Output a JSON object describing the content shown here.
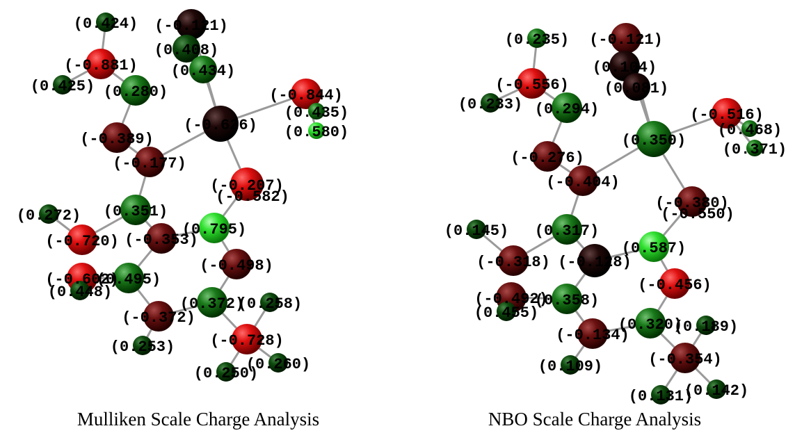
{
  "panels": [
    {
      "caption": "Mulliken Scale Charge Analysis",
      "atoms": [
        {
          "labels": [
            "(0.424)"
          ]
        },
        {
          "labels": [
            "(-0.121)"
          ]
        },
        {
          "labels": [
            "(0.408)"
          ]
        },
        {
          "labels": [
            "(0.434)"
          ]
        },
        {
          "labels": [
            "(-0.881)"
          ]
        },
        {
          "labels": [
            "(0.425)"
          ]
        },
        {
          "labels": [
            "(0.280)"
          ]
        },
        {
          "labels": [
            "(-0.626)"
          ]
        },
        {
          "labels": [
            "(-0.844)"
          ]
        },
        {
          "labels": [
            "(0.435)"
          ]
        },
        {
          "labels": [
            "(0.580)"
          ]
        },
        {
          "labels": [
            "(-0.389)"
          ]
        },
        {
          "labels": [
            "(-0.177)"
          ]
        },
        {
          "labels": [
            "(-0.207)",
            "(-0.582)"
          ]
        },
        {
          "labels": [
            "(0.272)"
          ]
        },
        {
          "labels": [
            "(0.351)"
          ]
        },
        {
          "labels": [
            "(-0.720)"
          ]
        },
        {
          "labels": [
            "(-0.353)"
          ]
        },
        {
          "labels": [
            "(0.795)"
          ]
        },
        {
          "labels": [
            "(-0.498)"
          ]
        },
        {
          "labels": [
            "(0.495)"
          ]
        },
        {
          "labels": [
            "(-0.602)"
          ]
        },
        {
          "labels": [
            "(0.448)"
          ]
        },
        {
          "labels": [
            "(-0.372)"
          ]
        },
        {
          "labels": [
            "(0.372)"
          ]
        },
        {
          "labels": [
            "(0.258)"
          ]
        },
        {
          "labels": [
            "(-0.728)"
          ]
        },
        {
          "labels": [
            "(0.253)"
          ]
        },
        {
          "labels": [
            "(0.250)"
          ]
        },
        {
          "labels": [
            "(0.260)"
          ]
        }
      ]
    },
    {
      "caption": "NBO Scale Charge Analysis",
      "atoms": [
        {
          "labels": [
            "(0.235)"
          ]
        },
        {
          "labels": [
            "(-0.121)"
          ]
        },
        {
          "labels": [
            "(0.104)"
          ]
        },
        {
          "labels": [
            "(0.081)"
          ]
        },
        {
          "labels": [
            "(-0.556)"
          ]
        },
        {
          "labels": [
            "(0.233)"
          ]
        },
        {
          "labels": [
            "(0.294)"
          ]
        },
        {
          "labels": [
            "(0.350)"
          ]
        },
        {
          "labels": [
            "(-0.516)"
          ]
        },
        {
          "labels": [
            "(0.468)"
          ]
        },
        {
          "labels": [
            "(0.371)"
          ]
        },
        {
          "labels": [
            "(-0.276)"
          ]
        },
        {
          "labels": [
            "(-0.404)"
          ]
        },
        {
          "labels": [
            "(-0.380)",
            "(-0.550)"
          ]
        },
        {
          "labels": [
            "(0.145)"
          ]
        },
        {
          "labels": [
            "(0.317)"
          ]
        },
        {
          "labels": [
            "(-0.318)"
          ]
        },
        {
          "labels": [
            "(-0.128)"
          ]
        },
        {
          "labels": [
            "(0.587)"
          ]
        },
        {
          "labels": [
            "(-0.456)"
          ]
        },
        {
          "labels": [
            "(0.358)"
          ]
        },
        {
          "labels": [
            "(-0.492)"
          ]
        },
        {
          "labels": [
            "(0.455)"
          ]
        },
        {
          "labels": [
            "(-0.134)"
          ]
        },
        {
          "labels": [
            "(0.320)"
          ]
        },
        {
          "labels": [
            "(0.189)"
          ]
        },
        {
          "labels": [
            "(-0.354)"
          ]
        },
        {
          "labels": [
            "(0.109)"
          ]
        },
        {
          "labels": [
            "(0.131)"
          ]
        },
        {
          "labels": [
            "(0.142)"
          ]
        }
      ]
    }
  ]
}
